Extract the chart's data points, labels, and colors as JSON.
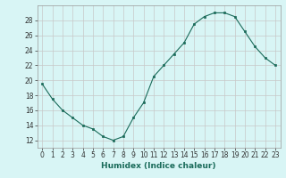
{
  "title": "",
  "xlabel": "Humidex (Indice chaleur)",
  "ylabel": "",
  "x": [
    0,
    1,
    2,
    3,
    4,
    5,
    6,
    7,
    8,
    9,
    10,
    11,
    12,
    13,
    14,
    15,
    16,
    17,
    18,
    19,
    20,
    21,
    22,
    23
  ],
  "y": [
    19.5,
    17.5,
    16.0,
    15.0,
    14.0,
    13.5,
    12.5,
    12.0,
    12.5,
    15.0,
    17.0,
    20.5,
    22.0,
    23.5,
    25.0,
    27.5,
    28.5,
    29.0,
    29.0,
    28.5,
    26.5,
    24.5,
    23.0,
    22.0
  ],
  "line_color": "#1a6b5a",
  "marker": "s",
  "marker_size": 2,
  "background_color": "#d8f5f5",
  "grid_color": "#c8c8c8",
  "xlim": [
    -0.5,
    23.5
  ],
  "ylim": [
    11,
    30
  ],
  "yticks": [
    12,
    14,
    16,
    18,
    20,
    22,
    24,
    26,
    28
  ],
  "xticks": [
    0,
    1,
    2,
    3,
    4,
    5,
    6,
    7,
    8,
    9,
    10,
    11,
    12,
    13,
    14,
    15,
    16,
    17,
    18,
    19,
    20,
    21,
    22,
    23
  ],
  "tick_fontsize": 5.5,
  "label_fontsize": 6.5
}
